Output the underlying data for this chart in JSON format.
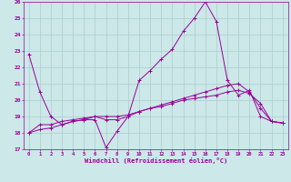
{
  "xlabel": "Windchill (Refroidissement éolien,°C)",
  "background_color": "#cce8e8",
  "grid_color": "#aacece",
  "line_color": "#990099",
  "x": [
    0,
    1,
    2,
    3,
    4,
    5,
    6,
    7,
    8,
    9,
    10,
    11,
    12,
    13,
    14,
    15,
    16,
    17,
    18,
    19,
    20,
    21,
    22,
    23
  ],
  "line1": [
    22.8,
    20.5,
    19.0,
    18.5,
    18.7,
    18.8,
    18.8,
    17.1,
    18.1,
    19.0,
    21.2,
    21.8,
    22.5,
    23.1,
    24.2,
    25.0,
    26.0,
    24.8,
    21.2,
    20.3,
    20.6,
    19.0,
    18.7,
    18.6
  ],
  "line2": [
    18.0,
    18.5,
    18.5,
    18.7,
    18.8,
    18.9,
    19.0,
    18.8,
    18.8,
    19.0,
    19.3,
    19.5,
    19.7,
    19.9,
    20.1,
    20.3,
    20.5,
    20.7,
    20.9,
    21.0,
    20.5,
    19.5,
    18.7,
    18.6
  ],
  "line3": [
    18.0,
    18.2,
    18.3,
    18.5,
    18.7,
    18.8,
    19.0,
    19.0,
    19.0,
    19.1,
    19.3,
    19.5,
    19.6,
    19.8,
    20.0,
    20.1,
    20.2,
    20.3,
    20.5,
    20.6,
    20.4,
    19.8,
    18.7,
    18.6
  ],
  "ylim": [
    17,
    26
  ],
  "yticks": [
    17,
    18,
    19,
    20,
    21,
    22,
    23,
    24,
    25,
    26
  ],
  "xticks": [
    0,
    1,
    2,
    3,
    4,
    5,
    6,
    7,
    8,
    9,
    10,
    11,
    12,
    13,
    14,
    15,
    16,
    17,
    18,
    19,
    20,
    21,
    22,
    23
  ]
}
